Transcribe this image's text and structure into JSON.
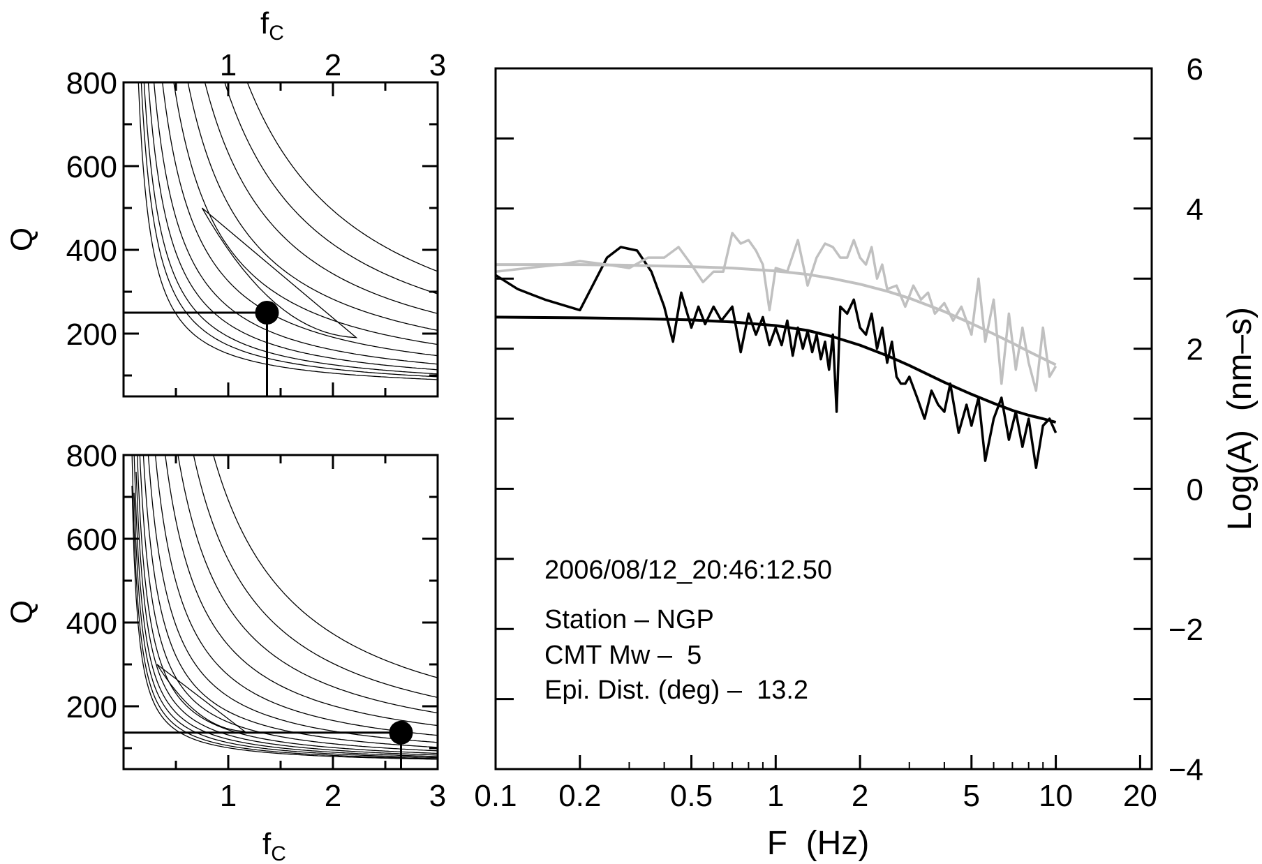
{
  "colors": {
    "observed_1": "#000000",
    "observed_2": "#c0c0c0",
    "contour": "#000000",
    "axes": "#000000"
  },
  "chart_data": [
    {
      "type": "contour",
      "panel": "top-left",
      "xlabel_base": "f",
      "xlabel_sub": "C",
      "ylabel": "Q",
      "xlim": [
        0,
        3
      ],
      "ylim": [
        50,
        800
      ],
      "x_ticks": [
        "1",
        "2",
        "3"
      ],
      "x_tick_side": "top",
      "y_ticks": [
        "200",
        "400",
        "600",
        "800"
      ],
      "best_fit": {
        "fc": 1.37,
        "Q": 250
      },
      "contour_levels": [
        90,
        110,
        130,
        160,
        200,
        260,
        340,
        440,
        560,
        700,
        860
      ],
      "inner_contour": true
    },
    {
      "type": "contour",
      "panel": "bottom-left",
      "xlabel_base": "f",
      "xlabel_sub": "C",
      "ylabel": "Q",
      "xlim": [
        0,
        3
      ],
      "ylim": [
        50,
        800
      ],
      "x_ticks": [
        "1",
        "2",
        "3"
      ],
      "x_tick_side": "bottom",
      "y_ticks": [
        "200",
        "400",
        "600",
        "800"
      ],
      "best_fit": {
        "fc": 2.65,
        "Q": 137
      },
      "contour_levels": [
        40,
        45,
        52,
        60,
        70,
        82,
        100,
        125,
        160,
        210,
        280,
        370,
        480,
        620
      ],
      "inner_contour": true
    },
    {
      "type": "line",
      "panel": "right",
      "xlabel": "F  (Hz)",
      "ylabel": "Log(A)  (nm–s)",
      "x_scale": "log",
      "xlim": [
        0.1,
        22
      ],
      "ylim": [
        -4,
        6
      ],
      "x_ticks": [
        "0.1",
        "0.2",
        "0.5",
        "1",
        "2",
        "5",
        "10",
        "20"
      ],
      "y_ticks": [
        "−4",
        "−2",
        "0",
        "2",
        "4",
        "6"
      ],
      "annotations": {
        "date": "2006/08/12_20:46:12.50",
        "station": "Station – NGP",
        "cmt": "CMT Mw –  5",
        "dist": "Epi. Dist. (deg) –  13.2"
      },
      "series": [
        {
          "color": "#000000",
          "kind": "observed",
          "x": [
            0.1,
            0.12,
            0.15,
            0.2,
            0.25,
            0.28,
            0.32,
            0.36,
            0.4,
            0.43,
            0.46,
            0.5,
            0.53,
            0.56,
            0.6,
            0.64,
            0.7,
            0.75,
            0.8,
            0.85,
            0.9,
            0.95,
            1.0,
            1.05,
            1.1,
            1.15,
            1.2,
            1.25,
            1.3,
            1.35,
            1.4,
            1.45,
            1.5,
            1.55,
            1.6,
            1.65,
            1.7,
            1.8,
            1.9,
            2.0,
            2.1,
            2.2,
            2.3,
            2.4,
            2.5,
            2.6,
            2.7,
            2.8,
            2.9,
            3.0,
            3.2,
            3.4,
            3.6,
            3.8,
            4.0,
            4.2,
            4.5,
            4.8,
            5.0,
            5.3,
            5.6,
            6.0,
            6.4,
            6.8,
            7.2,
            7.6,
            8.0,
            8.5,
            9.0,
            9.5,
            10.0
          ],
          "y": [
            3.05,
            2.85,
            2.7,
            2.55,
            3.3,
            3.45,
            3.4,
            3.1,
            2.6,
            2.1,
            2.8,
            2.3,
            2.6,
            2.35,
            2.6,
            2.4,
            2.6,
            1.95,
            2.5,
            2.2,
            2.45,
            2.05,
            2.3,
            2.05,
            2.4,
            1.9,
            2.3,
            2.0,
            2.25,
            1.95,
            2.2,
            1.85,
            2.1,
            1.7,
            2.2,
            1.1,
            2.6,
            2.5,
            2.7,
            2.3,
            2.2,
            2.5,
            2.0,
            2.3,
            1.8,
            2.1,
            1.6,
            1.5,
            1.5,
            1.6,
            1.3,
            1.0,
            1.4,
            1.2,
            1.1,
            1.5,
            0.8,
            1.2,
            0.9,
            1.3,
            0.4,
            1.0,
            1.3,
            0.7,
            1.1,
            0.6,
            1.0,
            0.3,
            0.9,
            1.0,
            0.8
          ]
        },
        {
          "color": "#000000",
          "kind": "model",
          "x": [
            0.1,
            0.2,
            0.3,
            0.5,
            0.7,
            1.0,
            1.3,
            1.6,
            2.0,
            2.5,
            3.0,
            4.0,
            5.0,
            6.0,
            7.0,
            8.0,
            9.0,
            10.0
          ],
          "y": [
            2.45,
            2.44,
            2.43,
            2.41,
            2.38,
            2.33,
            2.26,
            2.17,
            2.05,
            1.9,
            1.76,
            1.52,
            1.35,
            1.22,
            1.12,
            1.05,
            1.0,
            0.95
          ]
        },
        {
          "color": "#c0c0c0",
          "kind": "observed",
          "x": [
            0.1,
            0.13,
            0.17,
            0.2,
            0.25,
            0.3,
            0.35,
            0.4,
            0.45,
            0.5,
            0.55,
            0.6,
            0.65,
            0.7,
            0.75,
            0.8,
            0.85,
            0.9,
            0.95,
            1.0,
            1.1,
            1.2,
            1.3,
            1.4,
            1.5,
            1.6,
            1.7,
            1.8,
            1.9,
            2.0,
            2.1,
            2.2,
            2.3,
            2.4,
            2.5,
            2.7,
            2.9,
            3.1,
            3.3,
            3.5,
            3.7,
            4.0,
            4.3,
            4.6,
            5.0,
            5.3,
            5.6,
            6.0,
            6.4,
            6.8,
            7.2,
            7.6,
            8.0,
            8.5,
            9.0,
            9.5,
            10.0
          ],
          "y": [
            3.1,
            3.15,
            3.2,
            3.25,
            3.2,
            3.15,
            3.3,
            3.3,
            3.45,
            3.2,
            2.95,
            3.1,
            3.1,
            3.65,
            3.5,
            3.55,
            3.4,
            3.2,
            2.55,
            3.15,
            3.1,
            3.55,
            2.9,
            3.3,
            3.5,
            3.45,
            3.3,
            3.3,
            3.55,
            3.3,
            3.2,
            3.45,
            3.0,
            3.2,
            2.85,
            2.9,
            2.6,
            2.9,
            2.7,
            2.8,
            2.5,
            2.65,
            2.4,
            2.6,
            2.2,
            3.0,
            2.1,
            2.7,
            1.5,
            2.5,
            1.7,
            2.3,
            1.8,
            1.4,
            2.3,
            1.6,
            1.75
          ]
        },
        {
          "color": "#c0c0c0",
          "kind": "model",
          "x": [
            0.1,
            0.2,
            0.3,
            0.5,
            0.7,
            1.0,
            1.3,
            1.6,
            2.0,
            2.5,
            3.0,
            4.0,
            5.0,
            6.0,
            7.0,
            8.0,
            9.0,
            10.0
          ],
          "y": [
            3.2,
            3.2,
            3.19,
            3.17,
            3.15,
            3.11,
            3.06,
            3.0,
            2.92,
            2.82,
            2.72,
            2.53,
            2.36,
            2.21,
            2.08,
            1.96,
            1.86,
            1.77
          ]
        }
      ]
    }
  ]
}
